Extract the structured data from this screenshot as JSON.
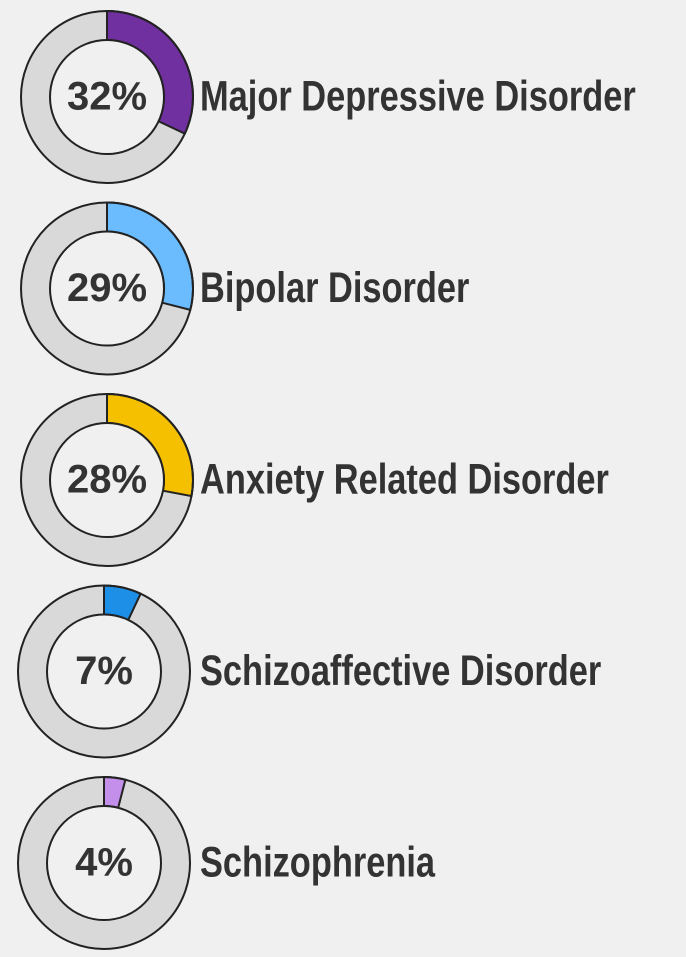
{
  "chart_data": {
    "type": "donut",
    "categories": [
      "Major Depressive Disorder",
      "Bipolar Disorder",
      "Anxiety Related Disorder",
      "Schizoaffective Disorder",
      "Schizophrenia"
    ],
    "values": [
      32,
      29,
      28,
      7,
      4
    ],
    "value_labels": [
      "32%",
      "29%",
      "28%",
      "7%",
      "4%"
    ],
    "colors": [
      "#7030a0",
      "#6bbcff",
      "#f5c000",
      "#1e8fe6",
      "#c38fea"
    ]
  }
}
